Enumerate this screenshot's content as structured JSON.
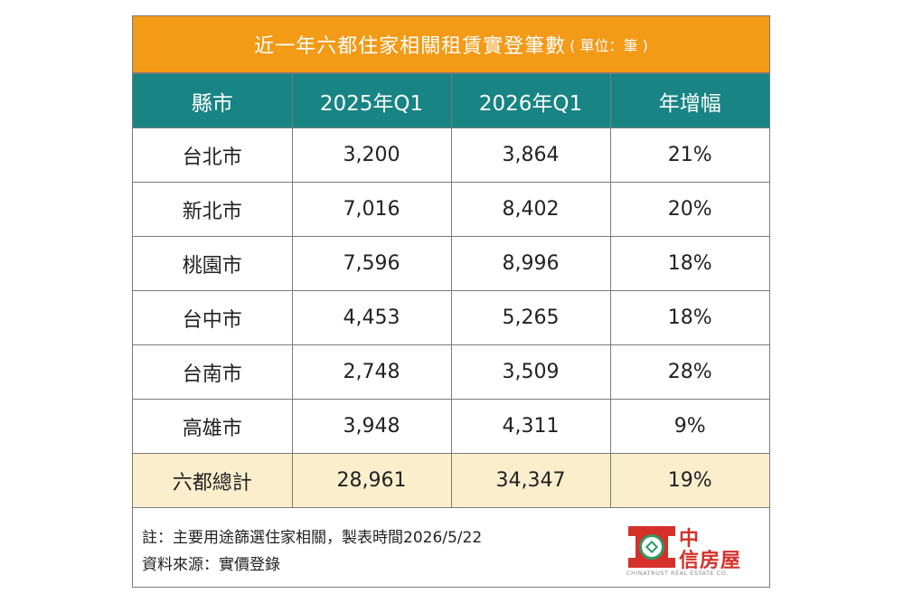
{
  "title": {
    "main": "近一年六都住家相關租賃實登筆數",
    "unit": "( 單位：筆 )"
  },
  "colors": {
    "title_bg": "#f39a17",
    "header_bg": "#188484",
    "total_row_bg": "#fbeecd",
    "logo_red": "#d6302a",
    "logo_green": "#2e9a63"
  },
  "table": {
    "headers": [
      "縣市",
      "2025年Q1",
      "2026年Q1",
      "年增幅"
    ],
    "rows": [
      [
        "台北市",
        "3,200",
        "3,864",
        "21%"
      ],
      [
        "新北市",
        "7,016",
        "8,402",
        "20%"
      ],
      [
        "桃園市",
        "7,596",
        "8,996",
        "18%"
      ],
      [
        "台中市",
        "4,453",
        "5,265",
        "18%"
      ],
      [
        "台南市",
        "2,748",
        "3,509",
        "28%"
      ],
      [
        "高雄市",
        "3,948",
        "4,311",
        "9%"
      ]
    ],
    "total": [
      "六都總計",
      "28,961",
      "34,347",
      "19%"
    ]
  },
  "notes": {
    "line1": "註：主要用途篩選住家相關，製表時間2026/5/22",
    "line2": "資料來源：實價登錄"
  },
  "logo": {
    "icon": "chinatrust-logo-icon",
    "line1": "中",
    "line2": "信房屋",
    "english": "CHINATRUST REAL ESTATE CO."
  }
}
